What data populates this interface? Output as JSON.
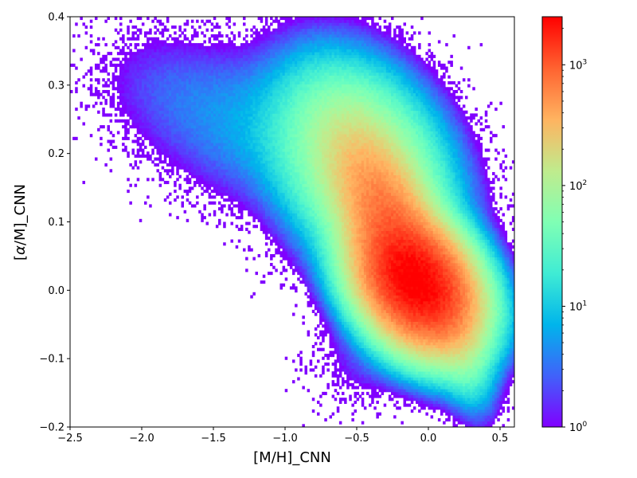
{
  "chart_data": {
    "type": "heatmap",
    "title": "",
    "xlabel": "[M/H]_CNN",
    "ylabel_parts": [
      "[",
      "α",
      "/M]_CNN"
    ],
    "xlim": [
      -2.5,
      0.6
    ],
    "ylim": [
      -0.2,
      0.4
    ],
    "grid": false,
    "x_ticks": [
      -2.5,
      -2.0,
      -1.5,
      -1.0,
      -0.5,
      0.0,
      0.5
    ],
    "x_tick_labels": [
      "−2.5",
      "−2.0",
      "−1.5",
      "−1.0",
      "−0.5",
      "0.0",
      "0.5"
    ],
    "y_ticks": [
      -0.2,
      -0.1,
      0.0,
      0.1,
      0.2,
      0.3,
      0.4
    ],
    "y_tick_labels": [
      "−0.2",
      "−0.1",
      "0.0",
      "0.1",
      "0.2",
      "0.3",
      "0.4"
    ],
    "colorbar": {
      "scale": "log",
      "range": [
        1,
        2500
      ],
      "colormap": "rainbow",
      "ticks": [
        1,
        10,
        100,
        1000
      ],
      "tick_labels": [
        {
          "base": "10",
          "exp": "0"
        },
        {
          "base": "10",
          "exp": "1"
        },
        {
          "base": "10",
          "exp": "2"
        },
        {
          "base": "10",
          "exp": "3"
        }
      ]
    },
    "density_components": [
      {
        "center": [
          -0.08,
          0.01
        ],
        "sigma": [
          0.2,
          0.045
        ],
        "rho": -0.3,
        "peak": 2400
      },
      {
        "center": [
          -0.25,
          0.09
        ],
        "sigma": [
          0.2,
          0.07
        ],
        "rho": -0.6,
        "peak": 700
      },
      {
        "center": [
          -0.45,
          0.18
        ],
        "sigma": [
          0.28,
          0.07
        ],
        "rho": -0.3,
        "peak": 150
      },
      {
        "center": [
          0.2,
          -0.06
        ],
        "sigma": [
          0.11,
          0.05
        ],
        "rho": -0.5,
        "peak": 60
      },
      {
        "center": [
          -1.1,
          0.23
        ],
        "sigma": [
          0.45,
          0.06
        ],
        "rho": -0.3,
        "peak": 6
      },
      {
        "center": [
          -1.8,
          0.3
        ],
        "sigma": [
          0.3,
          0.05
        ],
        "rho": -0.2,
        "peak": 1.5
      },
      {
        "center": [
          -0.35,
          -0.09
        ],
        "sigma": [
          0.22,
          0.04
        ],
        "rho": 0.2,
        "peak": 2
      }
    ]
  }
}
